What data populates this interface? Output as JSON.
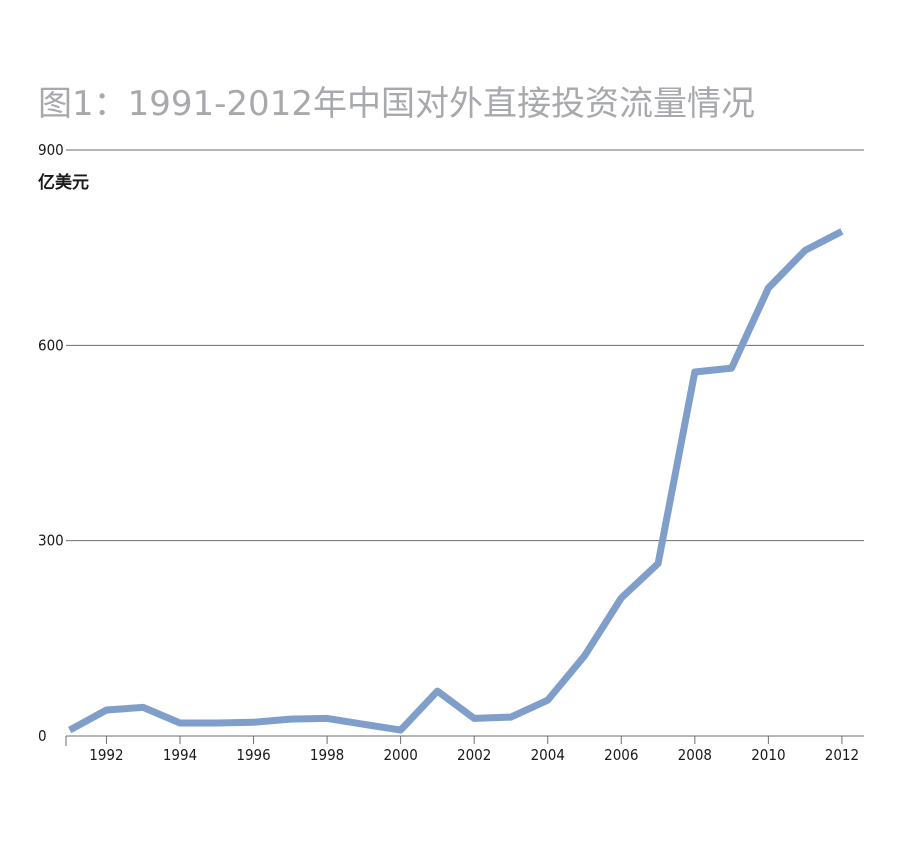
{
  "chart_data": {
    "type": "line",
    "title": "图1：1991-2012年中国对外直接投资流量情况",
    "ylabel": "亿美元",
    "xlabel": "",
    "x": [
      1991,
      1992,
      1993,
      1994,
      1995,
      1996,
      1997,
      1998,
      1999,
      2000,
      2001,
      2002,
      2003,
      2004,
      2005,
      2006,
      2007,
      2008,
      2009,
      2010,
      2011,
      2012
    ],
    "x_tick_labels": [
      "1992",
      "1994",
      "1996",
      "1998",
      "2000",
      "2002",
      "2004",
      "2006",
      "2008",
      "2010",
      "2012"
    ],
    "y_tick_labels": [
      "0",
      "300",
      "600",
      "900"
    ],
    "ylim": [
      0,
      900
    ],
    "xlim": [
      1990.9,
      2012.6
    ],
    "grid": true,
    "series": [
      {
        "values": [
          9,
          40,
          44,
          20,
          20,
          21,
          26,
          27,
          18,
          9,
          69,
          27,
          29,
          55,
          123,
          212,
          265,
          559,
          565,
          688,
          746,
          775
        ],
        "color": "#7f9ec9"
      }
    ]
  }
}
